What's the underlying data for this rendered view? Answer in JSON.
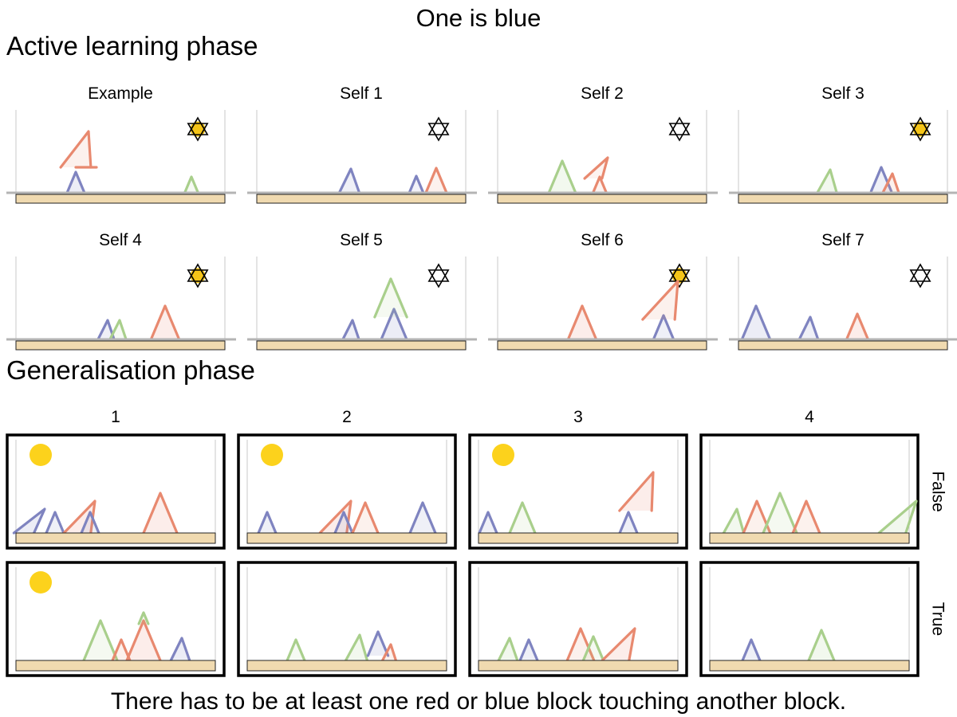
{
  "title": "One is blue",
  "active_phase": {
    "heading": "Active learning phase",
    "panels": [
      {
        "label": "Example",
        "star_filled": true,
        "blocks": [
          [
            "blue",
            95,
            0,
            26,
            0,
            0.15
          ],
          [
            "red",
            95,
            32,
            0,
            26,
            0.15
          ],
          [
            "red",
            95,
            32,
            45,
            16,
            0.12
          ],
          [
            "green",
            240,
            0,
            20,
            0,
            0.1
          ]
        ]
      },
      {
        "label": "Self 1",
        "star_filled": false,
        "blocks": [
          [
            "blue",
            438,
            0,
            30,
            2,
            0.12
          ],
          [
            "blue",
            522,
            0,
            21,
            0,
            0.1
          ],
          [
            "red",
            547,
            0,
            31,
            0,
            0.12
          ]
        ]
      },
      {
        "label": "Self 2",
        "star_filled": false,
        "blocks": [
          [
            "green",
            705,
            0,
            40,
            0,
            0.15
          ],
          [
            "red",
            752,
            0,
            20,
            0,
            0.1
          ],
          [
            "red",
            744,
            18,
            26,
            18,
            0.1
          ]
        ]
      },
      {
        "label": "Self 3",
        "star_filled": true,
        "blocks": [
          [
            "green",
            1037,
            0,
            29,
            4,
            0.15
          ],
          [
            "blue",
            1105,
            2,
            30,
            0,
            0.12
          ],
          [
            "red",
            1117,
            0,
            24,
            2,
            0.12
          ]
        ]
      },
      {
        "label": "Self 4",
        "star_filled": true,
        "blocks": [
          [
            "blue",
            133,
            0,
            24,
            2,
            0.12
          ],
          [
            "green",
            148,
            0,
            24,
            2,
            0.1
          ],
          [
            "red",
            207,
            0,
            42,
            0,
            0.15
          ]
        ]
      },
      {
        "label": "Self 5",
        "star_filled": false,
        "blocks": [
          [
            "blue",
            440,
            0,
            24,
            2,
            0.12
          ],
          [
            "blue",
            494,
            0,
            38,
            0,
            0.15
          ],
          [
            "green",
            490,
            28,
            48,
            0,
            0.12
          ]
        ]
      },
      {
        "label": "Self 6",
        "star_filled": true,
        "blocks": [
          [
            "red",
            730,
            0,
            42,
            0,
            0.15
          ],
          [
            "blue",
            832,
            0,
            30,
            0,
            0.12
          ],
          [
            "red",
            826,
            25,
            48,
            24,
            0.12
          ]
        ]
      },
      {
        "label": "Self 7",
        "star_filled": false,
        "blocks": [
          [
            "blue",
            948,
            0,
            42,
            0,
            0.15
          ],
          [
            "blue",
            1014,
            0,
            28,
            2,
            0.12
          ],
          [
            "red",
            1075,
            0,
            32,
            0,
            0.15
          ]
        ]
      }
    ]
  },
  "generalisation_phase": {
    "heading": "Generalisation phase",
    "columns": [
      "1",
      "2",
      "3",
      "4"
    ],
    "rows": [
      "False",
      "True"
    ],
    "panels": [
      {
        "row": 0,
        "col": 0,
        "sun": true,
        "blocks": [
          [
            "blue",
            30,
            0,
            30,
            26,
            0.15
          ],
          [
            "blue",
            69,
            0,
            26,
            0,
            0.12
          ],
          [
            "red",
            97,
            0,
            40,
            22,
            0.15
          ],
          [
            "blue",
            113,
            0,
            26,
            0,
            0.12
          ],
          [
            "red",
            201,
            0,
            50,
            0,
            0.15
          ]
        ]
      },
      {
        "row": 0,
        "col": 1,
        "sun": true,
        "blocks": [
          [
            "blue",
            335,
            0,
            26,
            0,
            0.12
          ],
          [
            "red",
            418,
            0,
            40,
            22,
            0.15
          ],
          [
            "blue",
            431,
            0,
            26,
            0,
            0.12
          ],
          [
            "red",
            458,
            0,
            38,
            0,
            0.12
          ],
          [
            "blue",
            530,
            0,
            38,
            0,
            0.12
          ]
        ]
      },
      {
        "row": 0,
        "col": 2,
        "sun": true,
        "blocks": [
          [
            "blue",
            612,
            0,
            26,
            0,
            0.12
          ],
          [
            "green",
            655,
            0,
            38,
            0,
            0.12
          ],
          [
            "blue",
            788,
            0,
            26,
            0,
            0.12
          ],
          [
            "red",
            797,
            28,
            48,
            22,
            0.15
          ]
        ]
      },
      {
        "row": 0,
        "col": 3,
        "sun": false,
        "blocks": [
          [
            "green",
            920,
            0,
            30,
            4,
            0.15
          ],
          [
            "red",
            949,
            0,
            40,
            0,
            0.12
          ],
          [
            "green",
            978,
            0,
            50,
            0,
            0.12
          ],
          [
            "red",
            1011,
            0,
            40,
            0,
            0.12
          ],
          [
            "green",
            1119,
            0,
            40,
            30,
            0.15
          ]
        ]
      },
      {
        "row": 1,
        "col": 0,
        "sun": true,
        "blocks": [
          [
            "green",
            126,
            0,
            50,
            0,
            0.12
          ],
          [
            "red",
            152,
            0,
            26,
            0,
            0.12
          ],
          [
            "red",
            180,
            0,
            50,
            0,
            0.15
          ],
          [
            "green",
            180,
            46,
            14,
            0,
            0.12
          ],
          [
            "blue",
            226,
            0,
            28,
            2,
            0.15
          ]
        ]
      },
      {
        "row": 1,
        "col": 1,
        "sun": false,
        "blocks": [
          [
            "green",
            371,
            0,
            26,
            0,
            0.1
          ],
          [
            "green",
            447,
            0,
            32,
            4,
            0.15
          ],
          [
            "blue",
            474,
            6,
            30,
            0,
            0.15
          ],
          [
            "red",
            488,
            0,
            20,
            2,
            0.12
          ]
        ]
      },
      {
        "row": 1,
        "col": 2,
        "sun": false,
        "blocks": [
          [
            "green",
            637,
            0,
            28,
            2,
            0.15
          ],
          [
            "blue",
            663,
            0,
            26,
            0,
            0.12
          ],
          [
            "red",
            728,
            0,
            40,
            0,
            0.12
          ],
          [
            "green",
            744,
            0,
            30,
            0,
            0.12
          ],
          [
            "red",
            772,
            0,
            40,
            24,
            0.15
          ]
        ]
      },
      {
        "row": 1,
        "col": 3,
        "sun": false,
        "blocks": [
          [
            "blue",
            942,
            0,
            26,
            0,
            0.12
          ],
          [
            "green",
            1030,
            0,
            38,
            0,
            0.15
          ]
        ]
      }
    ]
  },
  "caption": "There has to be at least one red or blue block touching another block.",
  "colors": {
    "red": "#e8896f",
    "blue": "#7f84c0",
    "green": "#a9cf8c",
    "ground": "#f0dab0",
    "sun": "#fcd21c",
    "star_fill": "#f5c518"
  }
}
